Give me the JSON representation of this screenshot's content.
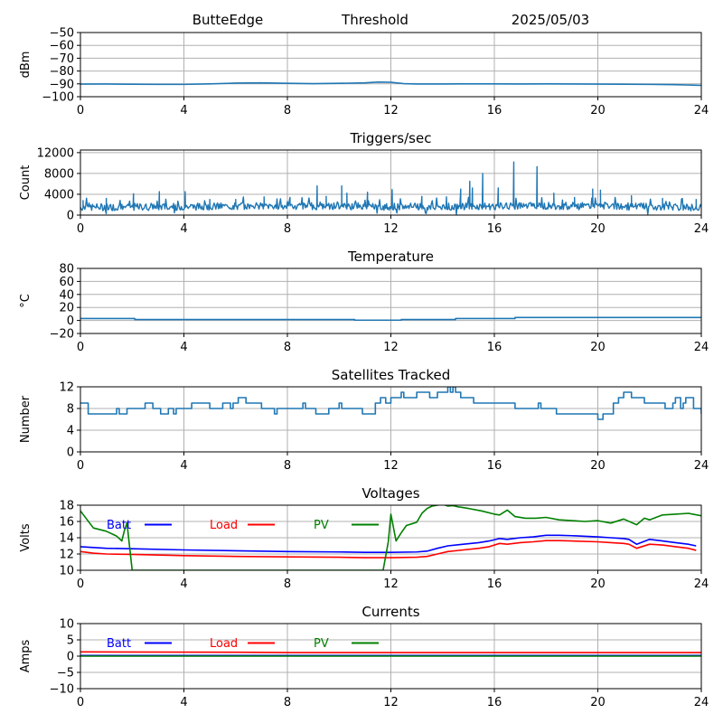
{
  "header": {
    "station": "ButteEdge",
    "plot_name": "Threshold",
    "date": "2025/05/03"
  },
  "colors": {
    "series_default": "#1f77b4",
    "batt": "#0000ff",
    "load": "#ff0000",
    "pv": "#008000",
    "grid": "#b0b0b0"
  },
  "chart_data": [
    {
      "id": "threshold",
      "type": "line",
      "title": "",
      "xlabel": "",
      "ylabel": "dBm",
      "xlim": [
        0,
        24
      ],
      "ylim": [
        -100,
        -50
      ],
      "xticks": [
        0,
        4,
        8,
        12,
        16,
        20,
        24
      ],
      "yticks": [
        -100,
        -90,
        -80,
        -70,
        -60,
        -50
      ],
      "ytick_labels": [
        "−100",
        "−90",
        "−80",
        "−70",
        "−60",
        "−50"
      ],
      "grid": true,
      "series": [
        {
          "color": "#1f77b4",
          "x": [
            0,
            1,
            2,
            3,
            4,
            5,
            6,
            7,
            8,
            9,
            10,
            11,
            11.5,
            12,
            12.5,
            13,
            14,
            15,
            16,
            17,
            18,
            19,
            20,
            21,
            22,
            23,
            24
          ],
          "y": [
            -90.2,
            -90.1,
            -90.3,
            -90.4,
            -90.4,
            -90.0,
            -89.4,
            -89.2,
            -89.6,
            -89.8,
            -89.6,
            -89.2,
            -88.6,
            -88.8,
            -89.8,
            -90.1,
            -90.1,
            -90.0,
            -90.0,
            -90.1,
            -90.0,
            -90.1,
            -90.2,
            -90.3,
            -90.4,
            -90.6,
            -91.2
          ]
        }
      ]
    },
    {
      "id": "triggers",
      "type": "line",
      "title": "Triggers/sec",
      "xlabel": "",
      "ylabel": "Count",
      "xlim": [
        0,
        24
      ],
      "ylim": [
        0,
        12500
      ],
      "xticks": [
        0,
        4,
        8,
        12,
        16,
        20,
        24
      ],
      "yticks": [
        0,
        4000,
        8000,
        12000
      ],
      "ytick_labels": [
        "0",
        "4000",
        "8000",
        "12000"
      ],
      "grid": true,
      "series": [
        {
          "color": "#1f77b4",
          "baseline": [
            [
              0,
              1500
            ],
            [
              4,
              1600
            ],
            [
              6,
              1700
            ],
            [
              8,
              1800
            ],
            [
              10,
              1700
            ],
            [
              12,
              1600
            ],
            [
              14,
              1600
            ],
            [
              16,
              1700
            ],
            [
              18,
              1800
            ],
            [
              20,
              1700
            ],
            [
              22,
              1600
            ],
            [
              24,
              1400
            ]
          ],
          "spikes": [
            [
              0.1,
              2800
            ],
            [
              1.0,
              3200
            ],
            [
              2.05,
              4100
            ],
            [
              3.05,
              4500
            ],
            [
              4.05,
              4500
            ],
            [
              5.0,
              3000
            ],
            [
              6.0,
              3000
            ],
            [
              7.1,
              3500
            ],
            [
              8.1,
              3400
            ],
            [
              9.15,
              5600
            ],
            [
              9.5,
              3600
            ],
            [
              10.1,
              5600
            ],
            [
              10.3,
              4200
            ],
            [
              11.1,
              4400
            ],
            [
              12.05,
              4900
            ],
            [
              13.2,
              3600
            ],
            [
              14.15,
              3500
            ],
            [
              14.7,
              5000
            ],
            [
              15.05,
              6500
            ],
            [
              15.15,
              5200
            ],
            [
              15.55,
              8000
            ],
            [
              16.15,
              5200
            ],
            [
              16.75,
              10200
            ],
            [
              17.65,
              9300
            ],
            [
              18.3,
              4200
            ],
            [
              19.1,
              3400
            ],
            [
              19.8,
              5000
            ],
            [
              20.1,
              4800
            ],
            [
              21.3,
              3700
            ],
            [
              22.5,
              3200
            ],
            [
              23.8,
              3000
            ]
          ]
        }
      ]
    },
    {
      "id": "temperature",
      "type": "line",
      "title": "Temperature",
      "xlabel": "",
      "ylabel": "°C",
      "xlim": [
        0,
        24
      ],
      "ylim": [
        -20,
        80
      ],
      "xticks": [
        0,
        4,
        8,
        12,
        16,
        20,
        24
      ],
      "yticks": [
        -20,
        0,
        20,
        40,
        60,
        80
      ],
      "ytick_labels": [
        "−20",
        "0",
        "20",
        "40",
        "60",
        "80"
      ],
      "grid": true,
      "series": [
        {
          "color": "#1f77b4",
          "x": [
            0,
            2.1,
            2.1,
            10.6,
            10.6,
            12.4,
            12.4,
            14.5,
            14.5,
            16.8,
            16.8,
            24
          ],
          "y": [
            3,
            3,
            1.5,
            1.5,
            0.5,
            0.5,
            1.5,
            1.5,
            3,
            3,
            4.5,
            4.5
          ]
        }
      ]
    },
    {
      "id": "satellites",
      "type": "line",
      "title": "Satellites Tracked",
      "xlabel": "",
      "ylabel": "Number",
      "xlim": [
        0,
        24
      ],
      "ylim": [
        0,
        12
      ],
      "xticks": [
        0,
        4,
        8,
        12,
        16,
        20,
        24
      ],
      "yticks": [
        0,
        4,
        8,
        12
      ],
      "ytick_labels": [
        "0",
        "4",
        "8",
        "12"
      ],
      "grid": true,
      "series": [
        {
          "color": "#1f77b4",
          "step": true,
          "x": [
            0,
            0.2,
            0.3,
            0.6,
            1.4,
            1.5,
            1.8,
            2.0,
            2.5,
            2.6,
            2.8,
            3.0,
            3.1,
            3.3,
            3.4,
            3.6,
            3.7,
            3.9,
            4.3,
            4.6,
            5.0,
            5.1,
            5.5,
            5.7,
            5.8,
            5.9,
            6.0,
            6.1,
            6.2,
            6.4,
            6.8,
            7.0,
            7.2,
            7.4,
            7.5,
            7.6,
            7.8,
            8.0,
            8.5,
            8.6,
            8.7,
            9.0,
            9.1,
            9.3,
            9.6,
            10.0,
            10.1,
            10.5,
            10.9,
            11.4,
            11.6,
            11.8,
            12.0,
            12.3,
            12.4,
            12.5,
            12.6,
            12.8,
            13.0,
            13.5,
            13.8,
            14.1,
            14.2,
            14.3,
            14.4,
            14.5,
            14.7,
            15.0,
            15.2,
            15.6,
            16.0,
            16.5,
            16.6,
            16.8,
            17.6,
            17.7,
            17.8,
            18.2,
            18.4,
            18.6,
            18.9,
            19.4,
            19.8,
            19.9,
            20.0,
            20.2,
            20.6,
            20.8,
            21.0,
            21.3,
            21.8,
            22.0,
            22.5,
            22.6,
            22.9,
            23.0,
            23.2,
            23.3,
            23.4,
            23.6,
            23.7,
            23.8,
            24.0
          ],
          "y": [
            9,
            9,
            7,
            7,
            8,
            7,
            8,
            8,
            9,
            9,
            8,
            8,
            7,
            7,
            8,
            7,
            8,
            8,
            9,
            9,
            8,
            8,
            9,
            9,
            8,
            9,
            9,
            10,
            10,
            9,
            9,
            8,
            8,
            8,
            7,
            8,
            8,
            8,
            8,
            9,
            8,
            8,
            7,
            7,
            8,
            9,
            8,
            8,
            7,
            9,
            10,
            9,
            10,
            10,
            11,
            10,
            10,
            10,
            11,
            10,
            11,
            11,
            12,
            11,
            12,
            11,
            10,
            10,
            9,
            9,
            9,
            9,
            9,
            8,
            8,
            9,
            8,
            8,
            7,
            7,
            7,
            7,
            7,
            7,
            6,
            7,
            9,
            10,
            11,
            10,
            9,
            9,
            9,
            8,
            9,
            10,
            8,
            9,
            10,
            10,
            8,
            8,
            7
          ]
        }
      ]
    },
    {
      "id": "voltages",
      "type": "line",
      "title": "Voltages",
      "xlabel": "",
      "ylabel": "Volts",
      "xlim": [
        0,
        24
      ],
      "ylim": [
        10,
        18
      ],
      "xticks": [
        0,
        4,
        8,
        12,
        16,
        20,
        24
      ],
      "yticks": [
        10,
        12,
        14,
        16,
        18
      ],
      "ytick_labels": [
        "10",
        "12",
        "14",
        "16",
        "18"
      ],
      "grid": true,
      "legend": [
        "Batt",
        "Load",
        "PV"
      ],
      "legend_position": "upper-left-row",
      "series": [
        {
          "name": "Batt",
          "color": "#0000ff",
          "x": [
            0,
            0.5,
            1,
            2,
            4,
            6,
            8,
            10,
            11,
            12,
            13,
            13.4,
            13.8,
            14.2,
            14.8,
            15.4,
            15.8,
            16.2,
            16.5,
            17,
            17.5,
            18,
            18.5,
            19,
            20,
            20.5,
            21,
            21.2,
            21.5,
            22,
            22.5,
            23,
            23.5,
            23.8
          ],
          "y": [
            12.9,
            12.8,
            12.7,
            12.65,
            12.5,
            12.4,
            12.3,
            12.25,
            12.2,
            12.2,
            12.25,
            12.35,
            12.7,
            13.0,
            13.2,
            13.4,
            13.6,
            13.9,
            13.8,
            14.0,
            14.1,
            14.3,
            14.3,
            14.25,
            14.1,
            14.0,
            13.9,
            13.8,
            13.2,
            13.8,
            13.6,
            13.4,
            13.2,
            13.0
          ]
        },
        {
          "name": "Load",
          "color": "#ff0000",
          "x": [
            0,
            0.5,
            1,
            2,
            4,
            6,
            8,
            10,
            11,
            12,
            13,
            13.4,
            13.8,
            14.2,
            14.8,
            15.4,
            15.8,
            16.2,
            16.5,
            17,
            17.5,
            18,
            18.5,
            19,
            20,
            20.5,
            21,
            21.2,
            21.5,
            22,
            22.5,
            23,
            23.5,
            23.8
          ],
          "y": [
            12.3,
            12.1,
            12.0,
            11.95,
            11.8,
            11.7,
            11.65,
            11.6,
            11.55,
            11.55,
            11.6,
            11.7,
            12.0,
            12.3,
            12.5,
            12.7,
            12.9,
            13.3,
            13.2,
            13.4,
            13.5,
            13.65,
            13.65,
            13.6,
            13.5,
            13.4,
            13.3,
            13.2,
            12.7,
            13.2,
            13.1,
            12.9,
            12.7,
            12.45
          ]
        },
        {
          "name": "PV",
          "color": "#008000",
          "x": [
            0,
            0.5,
            1,
            1.4,
            1.6,
            1.7,
            1.8,
            2.0,
            11.7,
            11.9,
            12.0,
            12.2,
            12.4,
            12.6,
            12.8,
            13.0,
            13.2,
            13.4,
            13.6,
            13.8,
            14.0,
            14.2,
            14.4,
            14.6,
            15,
            15.5,
            16,
            16.2,
            16.5,
            16.8,
            17.2,
            17.6,
            18,
            18.5,
            19,
            19.5,
            20,
            20.5,
            21,
            21.5,
            21.8,
            22,
            22.5,
            23,
            23.5,
            24
          ],
          "y": [
            17.3,
            15.2,
            14.8,
            14.2,
            13.6,
            14.9,
            15.8,
            10.0,
            10.0,
            13.5,
            16.9,
            13.6,
            14.6,
            15.5,
            15.7,
            15.9,
            17.0,
            17.6,
            17.9,
            18.0,
            18.1,
            17.9,
            17.95,
            17.8,
            17.6,
            17.3,
            16.9,
            16.8,
            17.4,
            16.6,
            16.4,
            16.4,
            16.5,
            16.2,
            16.1,
            16.0,
            16.1,
            15.8,
            16.3,
            15.6,
            16.4,
            16.2,
            16.8,
            16.9,
            17.0,
            16.7
          ]
        }
      ]
    },
    {
      "id": "currents",
      "type": "line",
      "title": "Currents",
      "xlabel": "",
      "ylabel": "Amps",
      "xlim": [
        0,
        24
      ],
      "ylim": [
        -10,
        10
      ],
      "xticks": [
        0,
        4,
        8,
        12,
        16,
        20,
        24
      ],
      "yticks": [
        -10,
        -5,
        0,
        5,
        10
      ],
      "ytick_labels": [
        "−10",
        "−5",
        "0",
        "5",
        "10"
      ],
      "grid": true,
      "legend": [
        "Batt",
        "Load",
        "PV"
      ],
      "legend_position": "upper-left-row",
      "series": [
        {
          "name": "Batt",
          "color": "#0000ff",
          "x": [
            0,
            24
          ],
          "y": [
            0.2,
            0.2
          ]
        },
        {
          "name": "Load",
          "color": "#ff0000",
          "x": [
            0,
            6,
            8,
            12,
            16,
            20,
            24
          ],
          "y": [
            1.3,
            1.2,
            1.1,
            1.1,
            1.1,
            1.1,
            1.1
          ]
        },
        {
          "name": "PV",
          "color": "#008000",
          "x": [
            0,
            24
          ],
          "y": [
            0.0,
            0.0
          ]
        }
      ]
    }
  ]
}
